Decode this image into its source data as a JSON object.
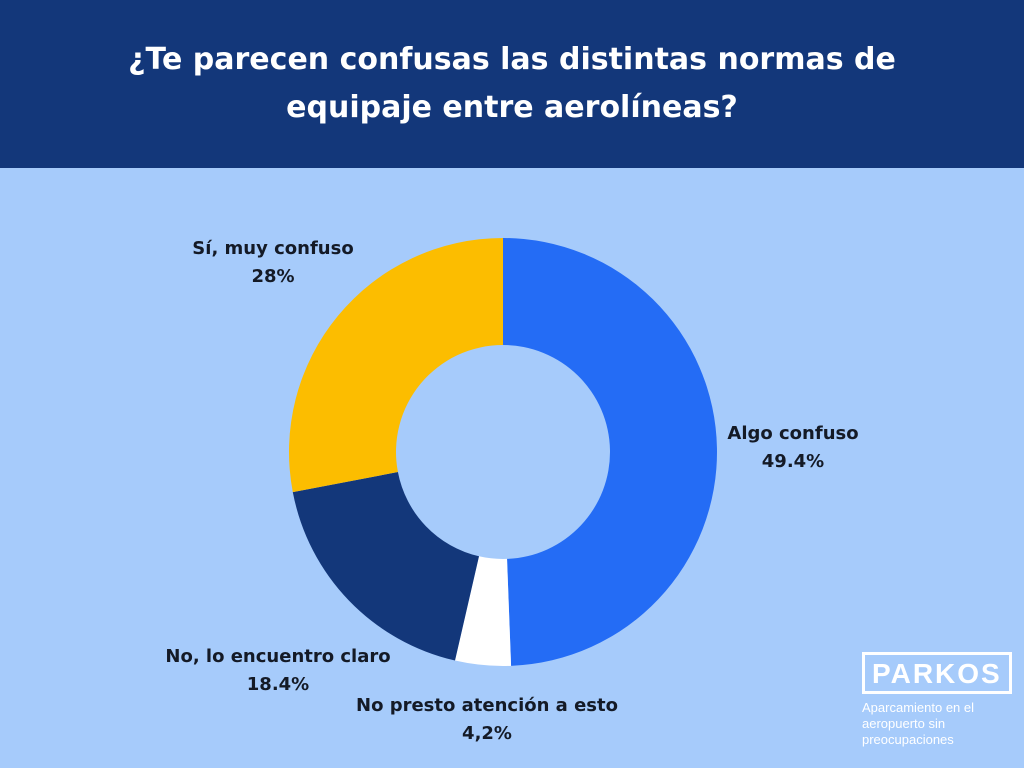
{
  "header": {
    "title": "¿Te parecen confusas las distintas normas de equipaje entre aerolíneas?"
  },
  "brand": {
    "name": "PARKOS",
    "tagline": "Aparcamiento en el aeropuerto sin preocupaciones"
  },
  "colors": {
    "header_bg": "#13377a",
    "background": "#a6cbfb",
    "algo_confuso": "#246cf5",
    "no_presto": "#ffffff",
    "no_claro": "#13377a",
    "si_muy_confuso": "#fcbd00"
  },
  "chart_data": {
    "type": "pie",
    "variant": "donut",
    "title": "¿Te parecen confusas las distintas normas de equipaje entre aerolíneas?",
    "slices": [
      {
        "label": "Algo confuso",
        "value": 49.4,
        "value_label": "49.4%",
        "color": "#246cf5"
      },
      {
        "label": "No presto atención a esto",
        "value": 4.2,
        "value_label": "4,2%",
        "color": "#ffffff"
      },
      {
        "label": "No, lo encuentro claro",
        "value": 18.4,
        "value_label": "18.4%",
        "color": "#13377a"
      },
      {
        "label": "Sí, muy confuso",
        "value": 28,
        "value_label": "28%",
        "color": "#fcbd00"
      }
    ]
  }
}
